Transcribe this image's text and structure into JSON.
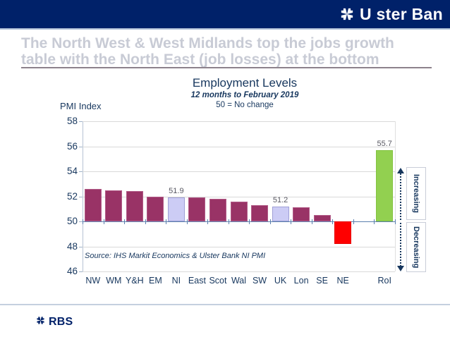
{
  "header": {
    "brand_icon": "daisy-wheel-icon",
    "brand_text": "U ster Ban"
  },
  "slide_title": {
    "line1": "The North West & West Midlands top the jobs growth",
    "line2": "table with the North East (job losses) at the bottom"
  },
  "chart_data": {
    "type": "bar",
    "title": "Employment Levels",
    "subtitle_line1": "12 months to February 2019",
    "subtitle_line2": "50 = No change",
    "ylabel": "PMI Index",
    "ylim": [
      46,
      58
    ],
    "yticks": [
      58,
      56,
      54,
      52,
      50,
      48,
      46
    ],
    "baseline": 50,
    "grid": true,
    "legend": "none",
    "categories": [
      "NW",
      "WM",
      "Y&H",
      "EM",
      "NI",
      "East",
      "Scot",
      "Wal",
      "SW",
      "UK",
      "Lon",
      "SE",
      "NE",
      "",
      "RoI"
    ],
    "values": [
      52.6,
      52.5,
      52.4,
      52.0,
      51.9,
      51.9,
      51.8,
      51.6,
      51.3,
      51.2,
      51.1,
      50.5,
      48.2,
      null,
      55.7
    ],
    "bar_colors": [
      "maroon",
      "maroon",
      "maroon",
      "maroon",
      "lavender",
      "maroon",
      "maroon",
      "maroon",
      "maroon",
      "lavender",
      "maroon",
      "maroon",
      "red",
      "none",
      "green"
    ],
    "value_labels": [
      null,
      null,
      null,
      null,
      "51.9",
      null,
      null,
      null,
      null,
      "51.2",
      null,
      null,
      null,
      null,
      "55.7"
    ],
    "palette": {
      "maroon": {
        "fill": "#993366",
        "border": "#b25c88"
      },
      "lavender": {
        "fill": "#ccccf5",
        "border": "#9f9fd6"
      },
      "red": {
        "fill": "#fe0000",
        "border": "#e60000"
      },
      "green": {
        "fill": "#92d050",
        "border": "#84c341"
      }
    },
    "source": "Source: IHS Markit Economics & Ulster Bank NI PMI",
    "annotations": {
      "increasing": "Increasing",
      "decreasing": "Decreasing"
    }
  },
  "footer": {
    "brand_icon": "daisy-wheel-icon",
    "brand_text": "RBS"
  },
  "colors": {
    "header_bg": "#002169",
    "navy_text": "#17375e",
    "title_text": "#c8cbd5",
    "title_underline": "#8d828c",
    "gridline": "#d9d9d9",
    "axis_blue": "#5b7fae",
    "value_label": "#595963",
    "divider": "#c5d0df"
  }
}
